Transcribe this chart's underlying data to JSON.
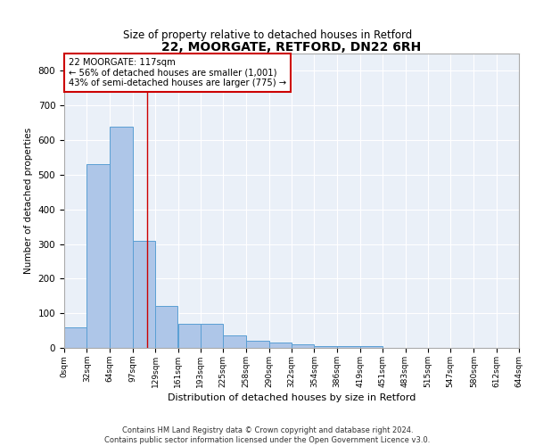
{
  "title": "22, MOORGATE, RETFORD, DN22 6RH",
  "subtitle": "Size of property relative to detached houses in Retford",
  "xlabel": "Distribution of detached houses by size in Retford",
  "ylabel": "Number of detached properties",
  "footnote": "Contains HM Land Registry data © Crown copyright and database right 2024.\nContains public sector information licensed under the Open Government Licence v3.0.",
  "bar_edges": [
    0,
    32,
    64,
    97,
    129,
    161,
    193,
    225,
    258,
    290,
    322,
    354,
    386,
    419,
    451,
    483,
    515,
    547,
    580,
    612,
    644
  ],
  "bar_heights": [
    60,
    530,
    640,
    310,
    120,
    70,
    70,
    35,
    20,
    15,
    10,
    5,
    5,
    5,
    0,
    0,
    0,
    0,
    0,
    0
  ],
  "tick_labels": [
    "0sqm",
    "32sqm",
    "64sqm",
    "97sqm",
    "129sqm",
    "161sqm",
    "193sqm",
    "225sqm",
    "258sqm",
    "290sqm",
    "322sqm",
    "354sqm",
    "386sqm",
    "419sqm",
    "451sqm",
    "483sqm",
    "515sqm",
    "547sqm",
    "580sqm",
    "612sqm",
    "644sqm"
  ],
  "bar_color": "#aec6e8",
  "bar_edge_color": "#5a9fd4",
  "property_line_x": 117,
  "annotation_line1": "22 MOORGATE: 117sqm",
  "annotation_line2": "← 56% of detached houses are smaller (1,001)",
  "annotation_line3": "43% of semi-detached houses are larger (775) →",
  "annotation_box_color": "#ffffff",
  "annotation_box_edge": "#cc0000",
  "line_color": "#cc0000",
  "background_color": "#eaf0f8",
  "grid_color": "#ffffff",
  "ylim": [
    0,
    850
  ],
  "yticks": [
    0,
    100,
    200,
    300,
    400,
    500,
    600,
    700,
    800
  ]
}
